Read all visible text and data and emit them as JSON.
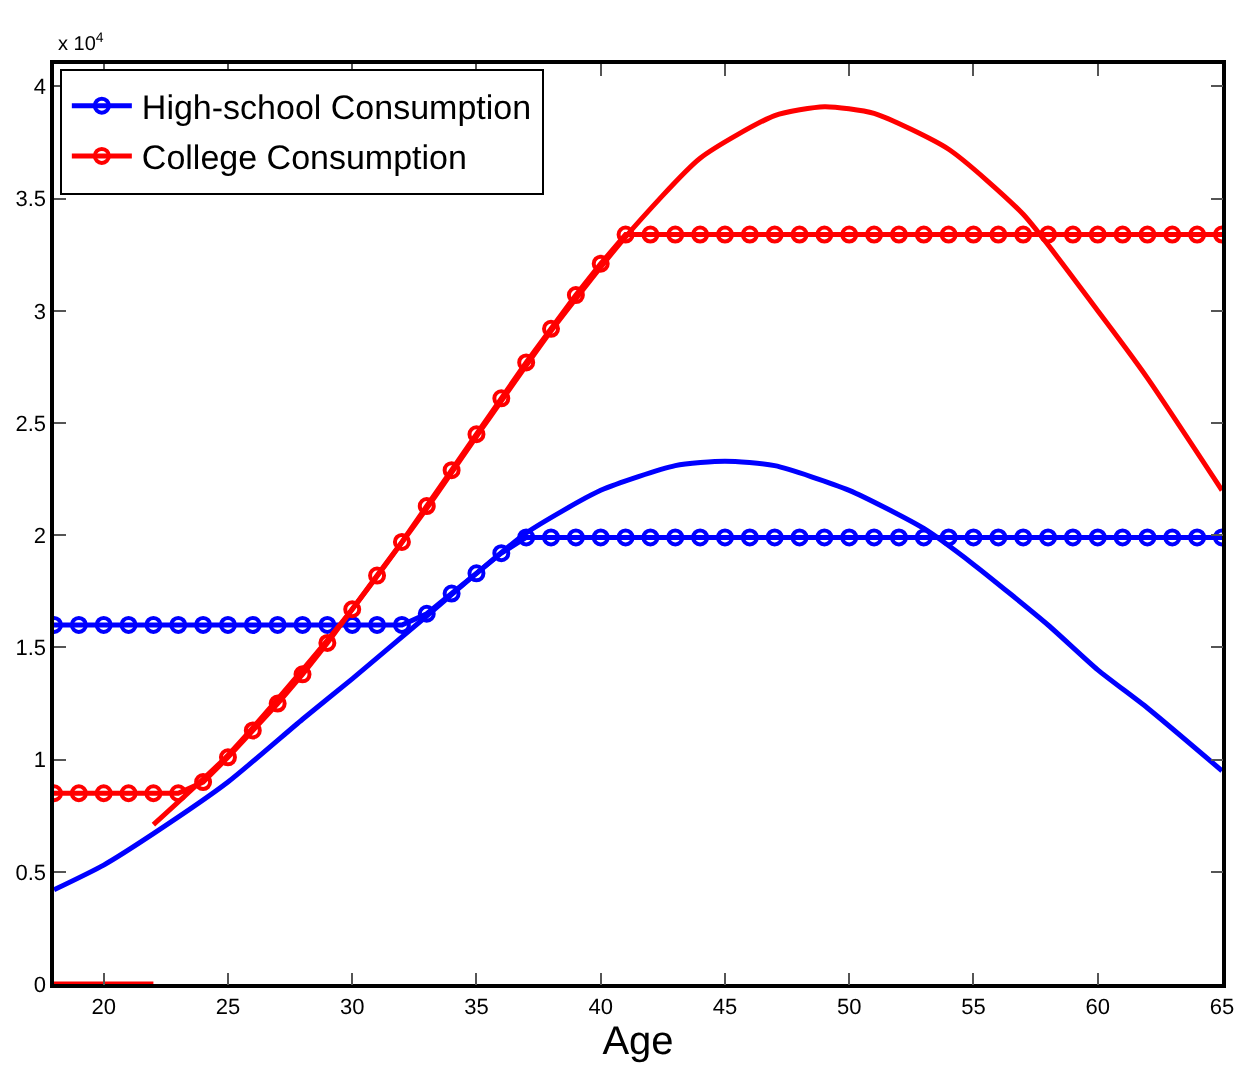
{
  "chart_data": {
    "type": "line",
    "xlabel": "Age",
    "annotations": [
      "x 10$^{4}$"
    ],
    "xlim": [
      18,
      65
    ],
    "xticks": [
      20,
      25,
      30,
      35,
      40,
      45,
      50,
      55,
      60,
      65
    ],
    "ylim": [
      0,
      4.1
    ],
    "yticks": [
      0,
      0.5,
      1,
      1.5,
      2,
      2.5,
      3,
      3.5,
      4
    ],
    "grid": false,
    "legend": "top left",
    "line_style": "solid",
    "series": [
      {
        "name": "High-school Consumption",
        "color": "#0000ff",
        "marker": "circle",
        "x": [
          18,
          19,
          20,
          21,
          22,
          23,
          24,
          25,
          26,
          27,
          28,
          29,
          30,
          31,
          32,
          33,
          34,
          35,
          36,
          37,
          38,
          39,
          40,
          41,
          42,
          43,
          44,
          45,
          46,
          47,
          48,
          49,
          50,
          51,
          52,
          53,
          54,
          55,
          56,
          57,
          58,
          59,
          60,
          61,
          62,
          63,
          64,
          65
        ],
        "values": [
          1.6,
          1.6,
          1.6,
          1.6,
          1.6,
          1.6,
          1.6,
          1.6,
          1.6,
          1.6,
          1.6,
          1.6,
          1.6,
          1.6,
          1.6,
          1.65,
          1.74,
          1.83,
          1.92,
          1.99,
          1.99,
          1.99,
          1.99,
          1.99,
          1.99,
          1.99,
          1.99,
          1.99,
          1.99,
          1.99,
          1.99,
          1.99,
          1.99,
          1.99,
          1.99,
          1.99,
          1.99,
          1.99,
          1.99,
          1.99,
          1.99,
          1.99,
          1.99,
          1.99,
          1.99,
          1.99,
          1.99,
          1.99
        ]
      },
      {
        "name": "College Consumption",
        "color": "#ff0000",
        "marker": "circle",
        "x": [
          18,
          19,
          20,
          21,
          22,
          23,
          24,
          25,
          26,
          27,
          28,
          29,
          30,
          31,
          32,
          33,
          34,
          35,
          36,
          37,
          38,
          39,
          40,
          41,
          42,
          43,
          44,
          45,
          46,
          47,
          48,
          49,
          50,
          51,
          52,
          53,
          54,
          55,
          56,
          57,
          58,
          59,
          60,
          61,
          62,
          63,
          64,
          65
        ],
        "values": [
          0.85,
          0.85,
          0.85,
          0.85,
          0.85,
          0.85,
          0.9,
          1.01,
          1.13,
          1.25,
          1.38,
          1.52,
          1.67,
          1.82,
          1.97,
          2.13,
          2.29,
          2.45,
          2.61,
          2.77,
          2.92,
          3.07,
          3.21,
          3.34,
          3.34,
          3.34,
          3.34,
          3.34,
          3.34,
          3.34,
          3.34,
          3.34,
          3.34,
          3.34,
          3.34,
          3.34,
          3.34,
          3.34,
          3.34,
          3.34,
          3.34,
          3.34,
          3.34,
          3.34,
          3.34,
          3.34,
          3.34,
          3.34
        ]
      },
      {
        "color": "#0000ff",
        "marker": "none",
        "x": [
          18,
          20,
          22,
          25,
          28,
          30,
          33,
          35,
          37,
          40,
          43,
          45,
          47,
          50,
          53,
          55,
          58,
          60,
          62,
          65
        ],
        "values": [
          0.42,
          0.53,
          0.67,
          0.9,
          1.18,
          1.36,
          1.64,
          1.83,
          2.01,
          2.2,
          2.31,
          2.33,
          2.31,
          2.2,
          2.03,
          1.87,
          1.6,
          1.4,
          1.23,
          0.95
        ]
      },
      {
        "color": "#ff0000",
        "marker": "none",
        "x": [
          18,
          22
        ],
        "values": [
          0,
          0
        ]
      },
      {
        "color": "#ff0000",
        "marker": "none",
        "x": [
          22,
          25,
          28,
          30,
          33,
          35,
          38,
          41,
          44,
          47,
          49,
          51,
          54,
          57,
          60,
          62,
          65
        ],
        "values": [
          0.71,
          1.02,
          1.4,
          1.67,
          2.12,
          2.44,
          2.91,
          3.33,
          3.68,
          3.87,
          3.91,
          3.88,
          3.72,
          3.43,
          3.0,
          2.7,
          2.2
        ]
      }
    ]
  }
}
